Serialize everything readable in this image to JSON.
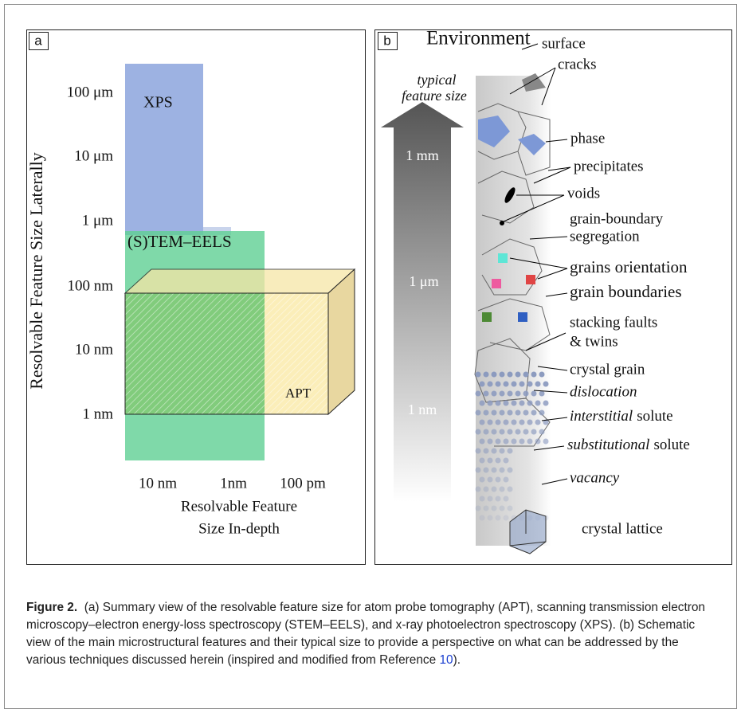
{
  "panel_a": {
    "label": "a",
    "y_axis_label": "Resolvable Feature Size Laterally",
    "y_ticks": [
      "100 μm",
      "10 μm",
      "1 μm",
      "100 nm",
      "10 nm",
      "1 nm"
    ],
    "regions": [
      "XPS",
      "(S)TEM–EELS",
      "APT"
    ],
    "x_ticks": [
      "10 nm",
      "1nm",
      "100 pm"
    ],
    "x_axis_label": [
      "Resolvable Feature",
      "Size In-depth"
    ]
  },
  "panel_b": {
    "label": "b",
    "title": "Environment",
    "arrow_label": [
      "typical",
      "feature size"
    ],
    "scale_labels": [
      "1 mm",
      "1 μm",
      "1 nm"
    ],
    "features": [
      {
        "text": "surface"
      },
      {
        "text": "cracks"
      },
      {
        "text": "phase"
      },
      {
        "text": "precipitates"
      },
      {
        "text": "voids"
      },
      {
        "lines": [
          "grain-boundary",
          "segregation"
        ]
      },
      {
        "text": "grains orientation"
      },
      {
        "text": "grain boundaries"
      },
      {
        "lines": [
          "stacking faults",
          "& twins"
        ]
      },
      {
        "text": "crystal grain"
      },
      {
        "italic": "dislocation"
      },
      {
        "italic": "interstitial",
        "text": "solute"
      },
      {
        "italic": "substitutional",
        "text": "solute"
      },
      {
        "italic": "vacancy"
      },
      {
        "text": "crystal lattice"
      }
    ]
  },
  "caption": {
    "label": "Figure 2.",
    "text": "(a) Summary view of the resolvable feature size for atom probe tomography (APT), scanning transmission electron microscopy–electron energy-loss spectroscopy (STEM–EELS), and x-ray photoelectron spectroscopy (XPS). (b) Schematic view of the main microstructural features and their typical size to provide a perspective on what can be addressed by the various techniques discussed herein (inspired and modified from Reference",
    "reference": "10",
    "end": ")."
  }
}
